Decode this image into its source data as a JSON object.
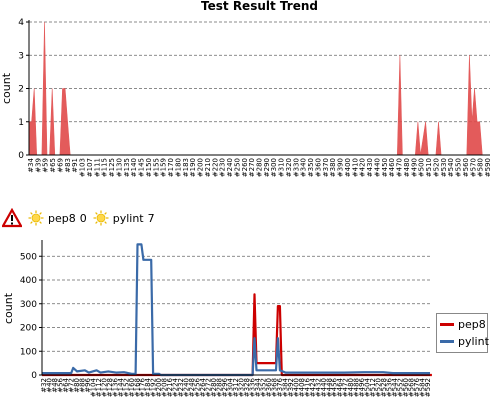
{
  "status": {
    "warning_icon": "warning-triangle-icon",
    "weather_icon": "sun-icon",
    "items": [
      {
        "name": "pep8",
        "value": "0"
      },
      {
        "name": "pylint",
        "value": "7"
      }
    ]
  },
  "chart_data": [
    {
      "type": "area",
      "title": "Test Result Trend",
      "ylabel": "count",
      "xlabel": "",
      "ylim": [
        0,
        4
      ],
      "yticks": [
        0,
        1,
        2,
        3,
        4
      ],
      "grid": true,
      "color": "#e04a4a",
      "x_tick_labels": [
        "#34",
        "#39",
        "#59",
        "#65",
        "#69",
        "#83",
        "#91",
        "#103",
        "#107",
        "#111",
        "#115",
        "#125",
        "#130",
        "#135",
        "#140",
        "#145",
        "#150",
        "#155",
        "#159",
        "#170",
        "#180",
        "#183",
        "#190",
        "#200",
        "#210",
        "#220",
        "#230",
        "#240",
        "#250",
        "#260",
        "#270",
        "#280",
        "#290",
        "#300",
        "#310",
        "#320",
        "#330",
        "#340",
        "#350",
        "#360",
        "#370",
        "#380",
        "#390",
        "#400",
        "#410",
        "#420",
        "#430",
        "#440",
        "#450",
        "#460",
        "#470",
        "#480",
        "#490",
        "#500",
        "#510",
        "#520",
        "#530",
        "#540",
        "#550",
        "#560",
        "#570",
        "#580",
        "#590"
      ],
      "series": [
        {
          "points": [
            [
              0,
              1
            ],
            [
              1,
              1
            ],
            [
              2,
              2
            ],
            [
              3,
              0
            ],
            [
              5,
              0
            ],
            [
              6,
              4
            ],
            [
              7,
              0
            ],
            [
              8,
              0
            ],
            [
              9,
              2
            ],
            [
              10,
              0
            ],
            [
              12,
              0
            ],
            [
              13,
              2
            ],
            [
              14,
              2
            ],
            [
              15,
              1
            ],
            [
              16,
              0
            ],
            [
              143,
              0
            ],
            [
              144,
              3
            ],
            [
              145,
              0
            ],
            [
              150,
              0
            ],
            [
              151,
              1
            ],
            [
              152,
              0
            ],
            [
              154,
              1
            ],
            [
              155,
              0
            ],
            [
              158,
              0
            ],
            [
              159,
              1
            ],
            [
              160,
              0
            ],
            [
              170,
              0
            ],
            [
              171,
              3
            ],
            [
              172,
              1
            ],
            [
              173,
              2
            ],
            [
              174,
              1
            ],
            [
              175,
              1
            ],
            [
              176,
              0
            ],
            [
              179,
              0
            ]
          ]
        }
      ],
      "x_count": 180
    },
    {
      "type": "line",
      "title": "",
      "ylabel": "count",
      "xlabel": "",
      "ylim": [
        0,
        560
      ],
      "yticks": [
        0,
        100,
        200,
        300,
        400,
        500
      ],
      "grid": true,
      "legend_position": "right",
      "x_tick_labels": [
        "#32",
        "#40",
        "#48",
        "#56",
        "#64",
        "#72",
        "#80",
        "#88",
        "#96",
        "#104",
        "#112",
        "#120",
        "#128",
        "#136",
        "#144",
        "#152",
        "#160",
        "#168",
        "#176",
        "#184",
        "#192",
        "#200",
        "#208",
        "#216",
        "#224",
        "#232",
        "#240",
        "#248",
        "#256",
        "#264",
        "#272",
        "#280",
        "#288",
        "#296",
        "#304",
        "#312",
        "#320",
        "#328",
        "#336",
        "#344",
        "#352",
        "#360",
        "#368",
        "#376",
        "#384",
        "#392",
        "#400",
        "#408",
        "#416",
        "#424",
        "#432",
        "#440",
        "#448",
        "#456",
        "#464",
        "#472",
        "#480",
        "#488",
        "#496",
        "#504",
        "#512",
        "#520",
        "#528",
        "#536",
        "#544",
        "#552",
        "#560",
        "#568",
        "#576",
        "#584",
        "#592"
      ],
      "series": [
        {
          "name": "pep8",
          "color": "#cc0000",
          "points": [
            [
              0,
              0
            ],
            [
              40,
              0
            ],
            [
              41,
              0
            ],
            [
              108,
              0
            ],
            [
              109,
              340
            ],
            [
              110,
              50
            ],
            [
              120,
              50
            ],
            [
              121,
              290
            ],
            [
              122,
              290
            ],
            [
              123,
              0
            ],
            [
              200,
              0
            ]
          ]
        },
        {
          "name": "pylint",
          "color": "#3a6aa8",
          "points": [
            [
              0,
              8
            ],
            [
              15,
              8
            ],
            [
              16,
              30
            ],
            [
              18,
              15
            ],
            [
              22,
              20
            ],
            [
              24,
              10
            ],
            [
              26,
              15
            ],
            [
              28,
              20
            ],
            [
              30,
              10
            ],
            [
              34,
              15
            ],
            [
              38,
              10
            ],
            [
              42,
              12
            ],
            [
              46,
              5
            ],
            [
              48,
              5
            ],
            [
              49,
              550
            ],
            [
              51,
              550
            ],
            [
              52,
              485
            ],
            [
              56,
              485
            ],
            [
              57,
              5
            ],
            [
              60,
              5
            ],
            [
              61,
              0
            ],
            [
              108,
              0
            ],
            [
              109,
              155
            ],
            [
              110,
              20
            ],
            [
              120,
              20
            ],
            [
              121,
              155
            ],
            [
              122,
              20
            ],
            [
              125,
              10
            ],
            [
              140,
              10
            ],
            [
              155,
              10
            ],
            [
              165,
              12
            ],
            [
              175,
              12
            ],
            [
              180,
              8
            ],
            [
              190,
              8
            ],
            [
              199,
              8
            ]
          ]
        }
      ],
      "x_count": 200
    }
  ]
}
